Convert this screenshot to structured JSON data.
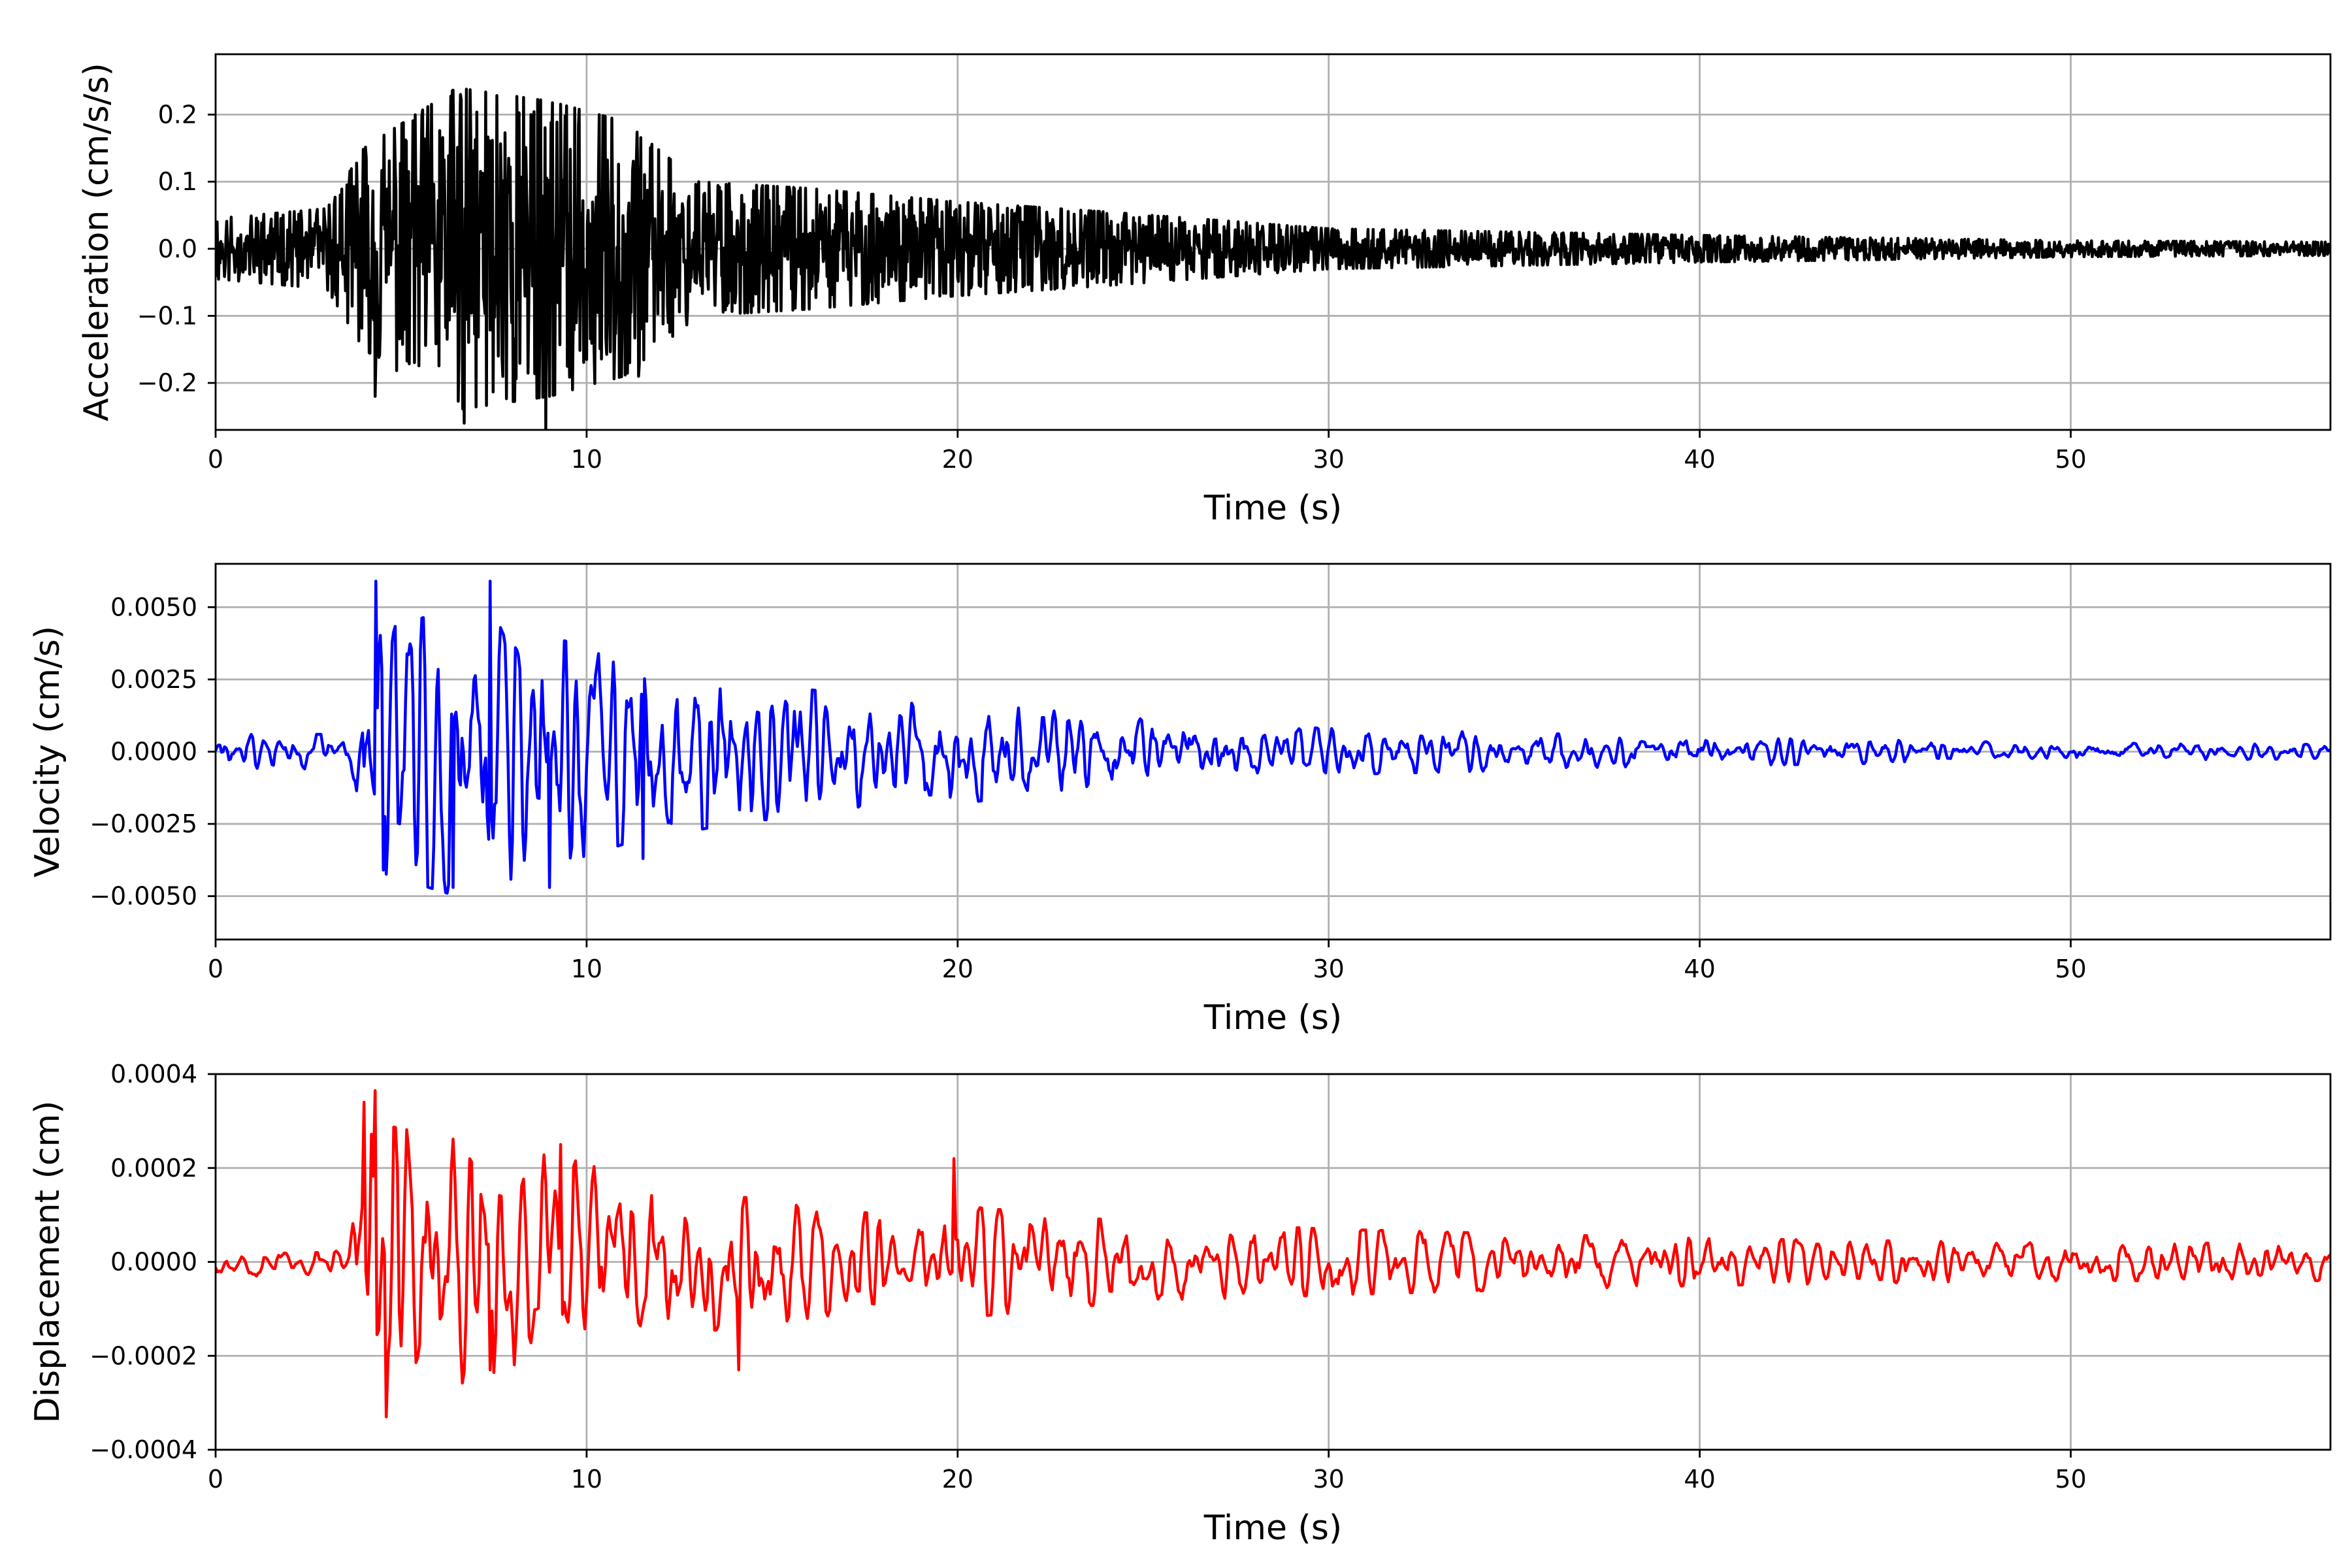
{
  "chart_data": [
    {
      "type": "line",
      "xlabel": "Time (s)",
      "ylabel": "Acceleration (cm/s/s)",
      "xlim": [
        0,
        57
      ],
      "ylim": [
        -0.27,
        0.29
      ],
      "xticks": [
        0,
        10,
        20,
        30,
        40,
        50
      ],
      "xtick_labels": [
        "0",
        "10",
        "20",
        "30",
        "40",
        "50"
      ],
      "yticks": [
        -0.2,
        -0.1,
        0.0,
        0.1,
        0.2
      ],
      "ytick_labels": [
        "−0.2",
        "−0.1",
        "0.0",
        "0.1",
        "0.2"
      ],
      "grid": true,
      "color": "#000000",
      "envelope": {
        "t": [
          0,
          3,
          4,
          6.5,
          9,
          11,
          13,
          16,
          20,
          24,
          30,
          40,
          50,
          57
        ],
        "amp": [
          0.045,
          0.06,
          0.15,
          0.24,
          0.22,
          0.19,
          0.1,
          0.09,
          0.07,
          0.055,
          0.03,
          0.02,
          0.012,
          0.01
        ]
      },
      "peaks": [
        {
          "t": 4.3,
          "v": -0.22
        },
        {
          "t": 6.6,
          "v": 0.23
        },
        {
          "t": 6.7,
          "v": -0.26
        },
        {
          "t": 8.9,
          "v": -0.27
        },
        {
          "t": 8.5,
          "v": 0.2
        },
        {
          "t": 11.4,
          "v": -0.19
        }
      ]
    },
    {
      "type": "line",
      "xlabel": "Time (s)",
      "ylabel": "Velocity (cm/s)",
      "xlim": [
        0,
        57
      ],
      "ylim": [
        -0.0065,
        0.0065
      ],
      "xticks": [
        0,
        10,
        20,
        30,
        40,
        50
      ],
      "xtick_labels": [
        "0",
        "10",
        "20",
        "30",
        "40",
        "50"
      ],
      "yticks": [
        -0.005,
        -0.0025,
        0.0,
        0.0025,
        0.005
      ],
      "ytick_labels": [
        "−0.0050",
        "−0.0025",
        "0.0000",
        "0.0025",
        "0.0050"
      ],
      "grid": true,
      "color": "#0000ff",
      "envelope": {
        "t": [
          0,
          3.5,
          4,
          6.5,
          9,
          11.5,
          14,
          18,
          20,
          24,
          30,
          40,
          50,
          57
        ],
        "amp": [
          0.0006,
          0.0006,
          0.004,
          0.005,
          0.004,
          0.003,
          0.0025,
          0.0018,
          0.0018,
          0.0012,
          0.0008,
          0.0005,
          0.0003,
          0.00025
        ]
      },
      "peaks": [
        {
          "t": 4.3,
          "v": 0.0059
        },
        {
          "t": 4.5,
          "v": -0.0041
        },
        {
          "t": 6.4,
          "v": -0.0047
        },
        {
          "t": 7.4,
          "v": 0.0059
        },
        {
          "t": 9.0,
          "v": -0.0047
        },
        {
          "t": 11.5,
          "v": -0.0037
        }
      ]
    },
    {
      "type": "line",
      "xlabel": "Time (s)",
      "ylabel": "Displacement (cm)",
      "xlim": [
        0,
        57
      ],
      "ylim": [
        -0.0004,
        0.0004
      ],
      "xticks": [
        0,
        10,
        20,
        30,
        40,
        50
      ],
      "xtick_labels": [
        "0",
        "10",
        "20",
        "30",
        "40",
        "50"
      ],
      "yticks": [
        -0.0004,
        -0.0002,
        0.0,
        0.0002,
        0.0004
      ],
      "ytick_labels": [
        "−0.0004",
        "−0.0002",
        "0.0000",
        "0.0002",
        "0.0004"
      ],
      "grid": true,
      "color": "#ff0000",
      "envelope": {
        "t": [
          0,
          3.5,
          4,
          6.5,
          9.5,
          12,
          14,
          18,
          20,
          24,
          30,
          40,
          50,
          57
        ],
        "amp": [
          3e-05,
          3e-05,
          0.0003,
          0.00026,
          0.00022,
          0.00016,
          0.00014,
          0.0001,
          0.00012,
          9e-05,
          7e-05,
          5e-05,
          4e-05,
          4e-05
        ]
      },
      "peaks": [
        {
          "t": 4.0,
          "v": 0.00034
        },
        {
          "t": 4.3,
          "v": 0.000365
        },
        {
          "t": 4.6,
          "v": -0.00033
        },
        {
          "t": 7.4,
          "v": -0.00023
        },
        {
          "t": 9.3,
          "v": 0.00025
        },
        {
          "t": 14.1,
          "v": -0.00023
        },
        {
          "t": 19.9,
          "v": 0.00022
        }
      ]
    }
  ]
}
